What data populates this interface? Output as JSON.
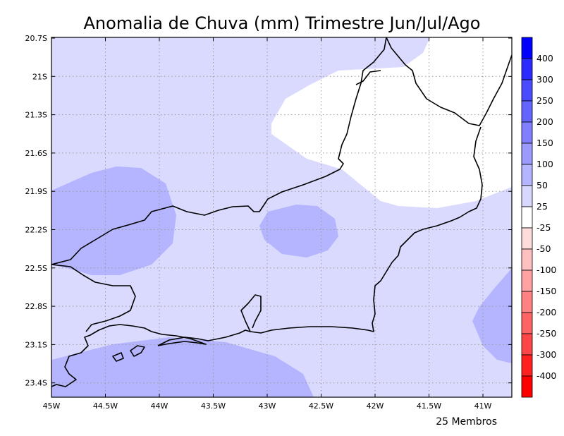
{
  "title": "Anomalia de Chuva (mm) Trimestre Jun/Jul/Ago",
  "footer": "25 Membros",
  "y_tick_labels": [
    "20.7S",
    "21S",
    "21.3S",
    "21.6S",
    "21.9S",
    "22.2S",
    "22.5S",
    "22.8S",
    "23.1S",
    "23.4S"
  ],
  "x_tick_labels": [
    "45W",
    "44.5W",
    "44W",
    "43.5W",
    "43W",
    "42.5W",
    "42W",
    "41.5W",
    "41W"
  ],
  "legend": {
    "levels": [
      "400",
      "300",
      "250",
      "200",
      "150",
      "100",
      "50",
      "25",
      "-25",
      "-50",
      "-100",
      "-150",
      "-200",
      "-250",
      "-300",
      "-400"
    ],
    "colors": [
      "#0000ff",
      "#2b2bff",
      "#4b4bff",
      "#6464ff",
      "#7f7fff",
      "#9a9aff",
      "#b4b4ff",
      "#d8d8ff",
      "#ffffff",
      "#ffdcdc",
      "#ffc0c0",
      "#ffa2a2",
      "#ff8282",
      "#ff6464",
      "#ff4646",
      "#ff2020",
      "#ff0000"
    ]
  },
  "map_colors": {
    "base_fill": "#dadaff",
    "positive_patch_fill": "#b4b4ff",
    "near_zero_fill": "#ffffff",
    "coastline": "#000000",
    "grid": "#999999"
  }
}
